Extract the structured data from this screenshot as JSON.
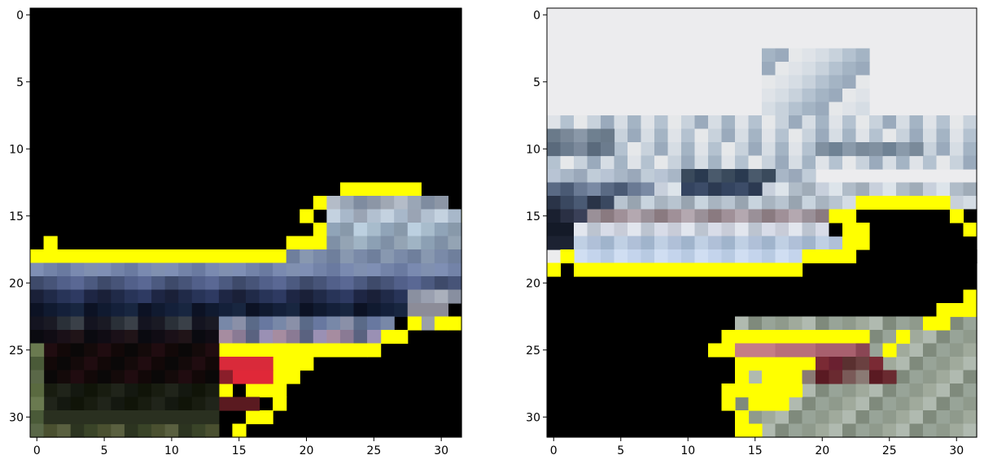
{
  "panels": [
    {
      "id": "left",
      "axes": {
        "x_ticks": [
          "0",
          "5",
          "10",
          "15",
          "20",
          "25",
          "30"
        ],
        "y_ticks": [
          "0",
          "5",
          "10",
          "15",
          "20",
          "25",
          "30"
        ],
        "x_tick_values": [
          0,
          5,
          10,
          15,
          20,
          25,
          30
        ],
        "y_tick_values": [
          0,
          5,
          10,
          15,
          20,
          25,
          30
        ],
        "xlim": [
          -0.5,
          31.5
        ],
        "ylim": [
          31.5,
          -0.5
        ]
      },
      "image": {
        "grid_size": 32,
        "description_regions": [
          {
            "label": "black-background",
            "color": "#000000"
          },
          {
            "label": "yellow-outline",
            "color": "#ffff00"
          },
          {
            "label": "car-body-blue",
            "color": "#4f5f86"
          },
          {
            "label": "car-roof-silver",
            "color": "#9aa6b6"
          },
          {
            "label": "taillight-red",
            "color": "#d92a3a"
          },
          {
            "label": "ground-olive",
            "color": "#4f5a3a"
          }
        ]
      }
    },
    {
      "id": "right",
      "axes": {
        "x_ticks": [
          "0",
          "5",
          "10",
          "15",
          "20",
          "25",
          "30"
        ],
        "y_ticks": [
          "0",
          "5",
          "10",
          "15",
          "20",
          "25",
          "30"
        ],
        "x_tick_values": [
          0,
          5,
          10,
          15,
          20,
          25,
          30
        ],
        "y_tick_values": [
          0,
          5,
          10,
          15,
          20,
          25,
          30
        ],
        "xlim": [
          -0.5,
          31.5
        ],
        "ylim": [
          31.5,
          -0.5
        ]
      },
      "image": {
        "grid_size": 32,
        "description_regions": [
          {
            "label": "bright-background",
            "color": "#ededee"
          },
          {
            "label": "yellow-outline",
            "color": "#ffff00"
          },
          {
            "label": "black-mask",
            "color": "#000000"
          },
          {
            "label": "scene-blue-gray",
            "color": "#6f8296"
          },
          {
            "label": "pink-patch",
            "color": "#c57d86"
          },
          {
            "label": "gray-green-ground",
            "color": "#8f9a8c"
          }
        ]
      }
    }
  ]
}
